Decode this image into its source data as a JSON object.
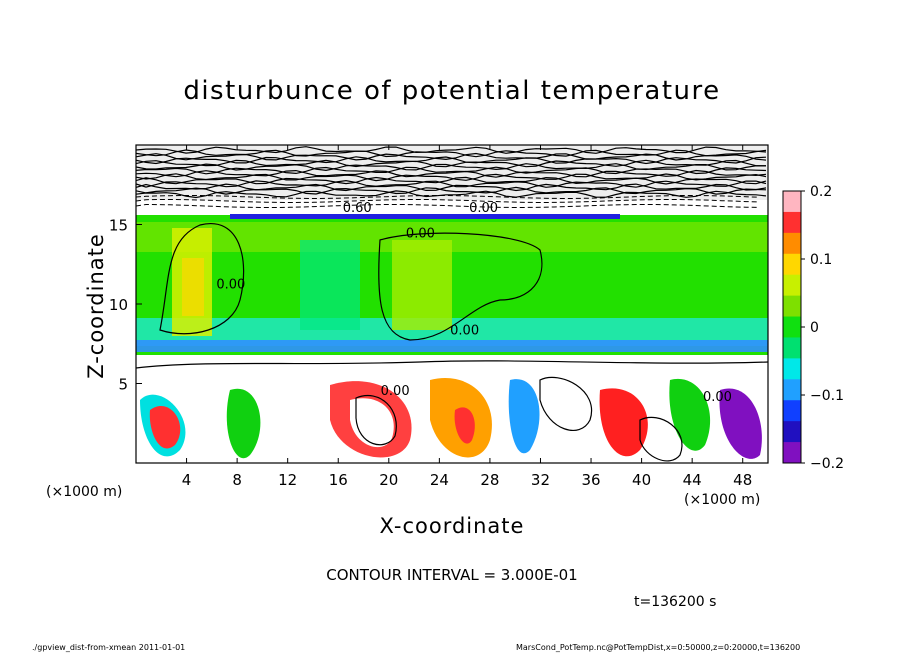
{
  "chart_data": {
    "type": "heatmap",
    "title": "disturbunce of potential temperature",
    "xlabel": "X-coordinate",
    "ylabel": "Z-coordinate",
    "x_unit_left": "(×1000 m)",
    "x_unit_right": "(×1000 m)",
    "xlim": [
      0,
      50
    ],
    "ylim": [
      0,
      20
    ],
    "x_ticks": [
      4,
      8,
      12,
      16,
      20,
      24,
      28,
      32,
      36,
      40,
      44,
      48
    ],
    "x_tick_labels": [
      "4",
      "8",
      "12",
      "16",
      "20",
      "24",
      "28",
      "32",
      "36",
      "40",
      "44",
      "48"
    ],
    "y_ticks": [
      5,
      10,
      15
    ],
    "y_tick_labels": [
      "5",
      "10",
      "15"
    ],
    "colorbar": {
      "range": [
        -0.2,
        0.2
      ],
      "ticks": [
        0.2,
        0.1,
        0,
        -0.1,
        -0.2
      ],
      "tick_labels": [
        "0.2",
        "0.1",
        "0",
        "−0.1",
        "−0.2"
      ],
      "colors": [
        "#ffb6c1",
        "#ff3030",
        "#ff8c00",
        "#ffd700",
        "#c8f000",
        "#7ee000",
        "#10e010",
        "#00e070",
        "#00e8e8",
        "#20a0ff",
        "#1040ff",
        "#2010c0",
        "#8010c0"
      ]
    },
    "contour_labels": [
      {
        "text": "0.60",
        "x": 17.5,
        "z": 16.1
      },
      {
        "text": "0.00",
        "x": 27.5,
        "z": 16.1
      },
      {
        "text": "0.00",
        "x": 22.5,
        "z": 14.5
      },
      {
        "text": "0.00",
        "x": 7.5,
        "z": 11.3
      },
      {
        "text": "0.00",
        "x": 26.0,
        "z": 8.4
      },
      {
        "text": "0.00",
        "x": 20.5,
        "z": 4.6
      },
      {
        "text": "0.00",
        "x": 46.0,
        "z": 4.2
      }
    ],
    "contour_interval": "CONTOUR INTERVAL = 3.000E-01",
    "time_label": "t=136200  s"
  },
  "footer": {
    "left": "./gpview_dist-from-xmean  2011-01-01",
    "right": "MarsCond_PotTemp.nc@PotTempDist,x=0:50000,z=0:20000,t=136200"
  }
}
